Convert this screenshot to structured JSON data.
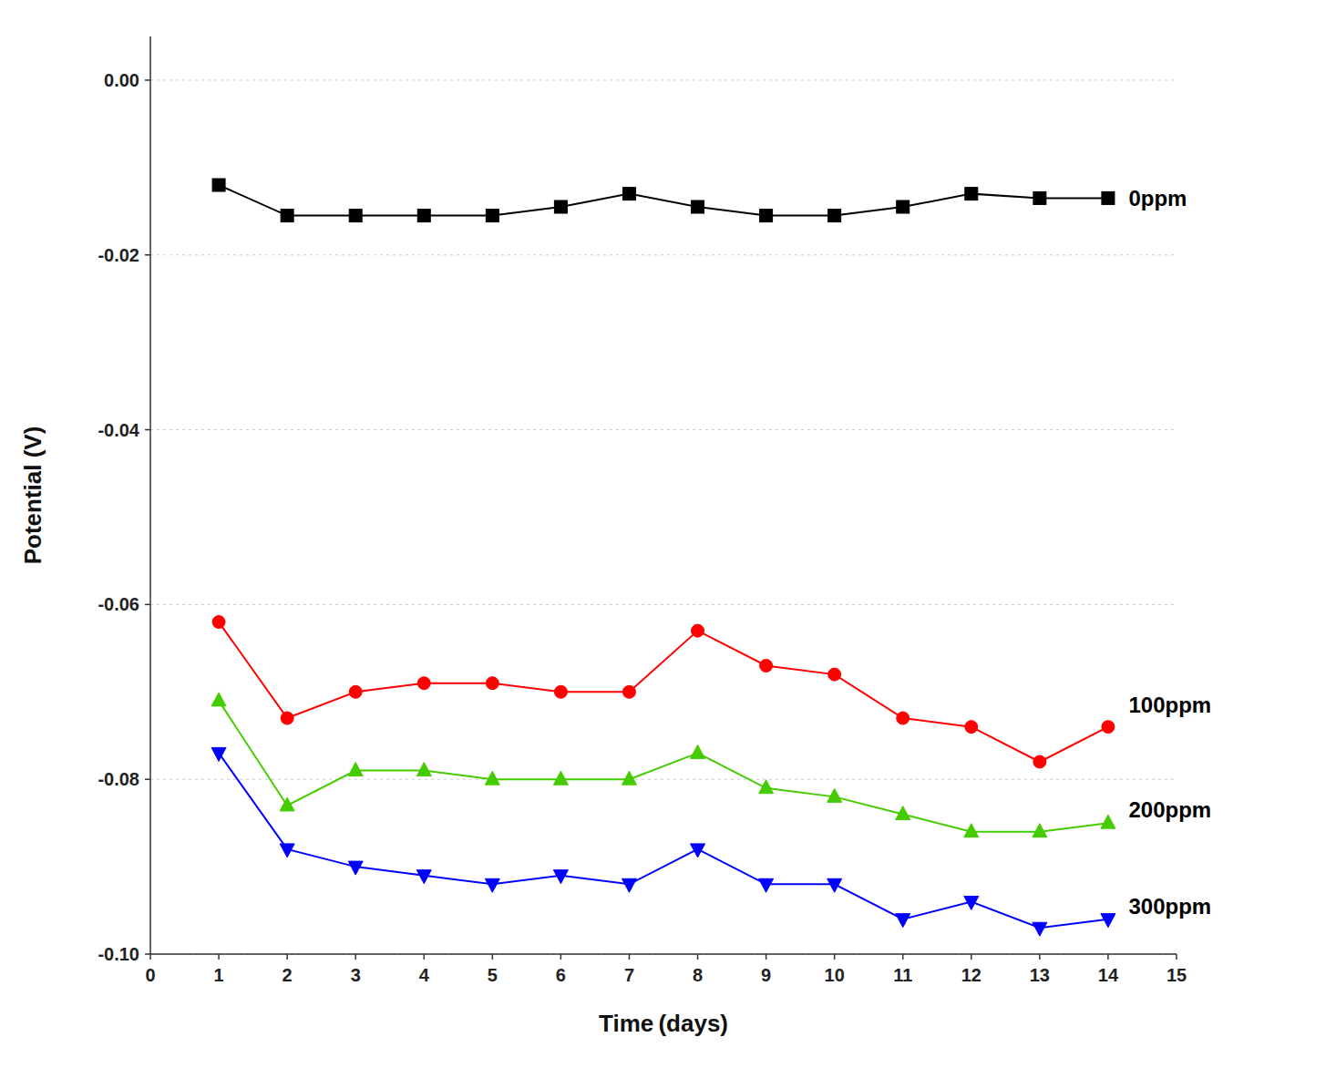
{
  "chart_data": {
    "type": "line",
    "xlabel": "Time (days)",
    "ylabel": "Potential (V)",
    "x": [
      1,
      2,
      3,
      4,
      5,
      6,
      7,
      8,
      9,
      10,
      11,
      12,
      13,
      14
    ],
    "series": [
      {
        "color": "#000000",
        "marker": "square",
        "values": [
          -0.012,
          -0.0155,
          -0.0155,
          -0.0155,
          -0.0155,
          -0.0145,
          -0.013,
          -0.0145,
          -0.0155,
          -0.0155,
          -0.0145,
          -0.013,
          -0.0135,
          -0.0135
        ]
      },
      {
        "color": "#ff0000",
        "marker": "circle",
        "values": [
          -0.062,
          -0.073,
          -0.07,
          -0.069,
          -0.069,
          -0.07,
          -0.07,
          -0.063,
          -0.067,
          -0.068,
          -0.073,
          -0.074,
          -0.078,
          -0.074
        ]
      },
      {
        "color": "#44cc00",
        "marker": "triangle-up",
        "values": [
          -0.071,
          -0.083,
          -0.079,
          -0.079,
          -0.08,
          -0.08,
          -0.08,
          -0.077,
          -0.081,
          -0.082,
          -0.084,
          -0.086,
          -0.086,
          -0.085
        ]
      },
      {
        "color": "#0000ff",
        "marker": "triangle-down",
        "values": [
          -0.077,
          -0.088,
          -0.09,
          -0.091,
          -0.092,
          -0.091,
          -0.092,
          -0.088,
          -0.092,
          -0.092,
          -0.096,
          -0.094,
          -0.097,
          -0.096
        ]
      }
    ],
    "xlim": [
      0,
      15
    ],
    "ylim": [
      -0.1,
      0.005
    ],
    "xticks": [
      0,
      1,
      2,
      3,
      4,
      5,
      6,
      7,
      8,
      9,
      10,
      11,
      12,
      13,
      14,
      15
    ],
    "yticks": [
      {
        "value": 0,
        "label": "0.00"
      },
      -0.02,
      -0.04,
      -0.06,
      -0.08,
      {
        "value": -0.1,
        "label": "-0.10"
      }
    ],
    "grid": true,
    "annotations": [
      {
        "text": "0ppm",
        "x": 14.3,
        "y": -0.0135
      },
      {
        "text": "100ppm",
        "x": 14.3,
        "y": -0.0715
      },
      {
        "text": "200ppm",
        "x": 14.3,
        "y": -0.0835
      },
      {
        "text": "300ppm",
        "x": 14.3,
        "y": -0.0945
      }
    ]
  }
}
